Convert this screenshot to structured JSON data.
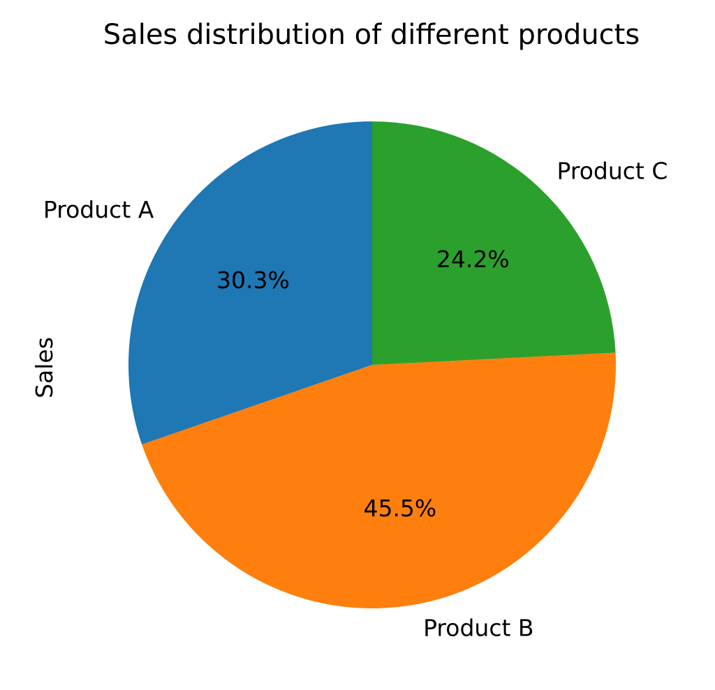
{
  "chart_data": {
    "type": "pie",
    "title": "Sales distribution of different products",
    "ylabel": "Sales",
    "categories": [
      "Product A",
      "Product B",
      "Product C"
    ],
    "values": [
      30.3,
      45.5,
      24.2
    ],
    "value_labels": [
      "30.3%",
      "45.5%",
      "24.2%"
    ],
    "colors": [
      "#1f77b4",
      "#ff7f0e",
      "#2ca02c"
    ],
    "start_angle_deg": 90,
    "direction": "counterclockwise"
  }
}
